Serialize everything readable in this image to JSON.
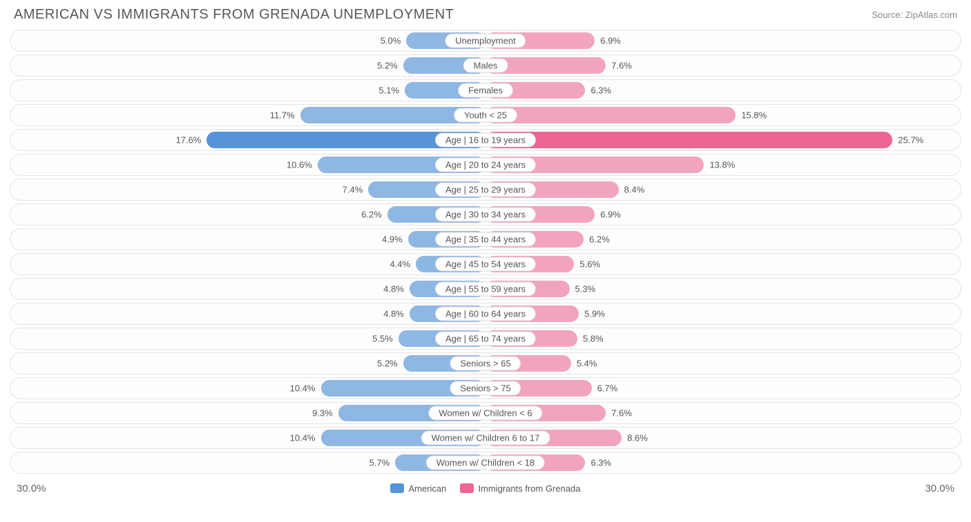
{
  "title": "AMERICAN VS IMMIGRANTS FROM GRENADA UNEMPLOYMENT",
  "source": "Source: ZipAtlas.com",
  "chart": {
    "type": "diverging-bar",
    "axis_max": 30.0,
    "axis_label_left": "30.0%",
    "axis_label_right": "30.0%",
    "background_color": "#ffffff",
    "track_border_color": "#e4e4e4",
    "label_pill_border": "#d9d9d9",
    "left_series": {
      "name": "American",
      "color_base": "#8fb7e3",
      "color_highlight": "#5694d9"
    },
    "right_series": {
      "name": "Immigrants from Grenada",
      "color_base": "#f3a4bd",
      "color_highlight": "#ec6594"
    },
    "highlight_index": 4,
    "rows": [
      {
        "category": "Unemployment",
        "left_val": 5.0,
        "left_label": "5.0%",
        "right_val": 6.9,
        "right_label": "6.9%"
      },
      {
        "category": "Males",
        "left_val": 5.2,
        "left_label": "5.2%",
        "right_val": 7.6,
        "right_label": "7.6%"
      },
      {
        "category": "Females",
        "left_val": 5.1,
        "left_label": "5.1%",
        "right_val": 6.3,
        "right_label": "6.3%"
      },
      {
        "category": "Youth < 25",
        "left_val": 11.7,
        "left_label": "11.7%",
        "right_val": 15.8,
        "right_label": "15.8%"
      },
      {
        "category": "Age | 16 to 19 years",
        "left_val": 17.6,
        "left_label": "17.6%",
        "right_val": 25.7,
        "right_label": "25.7%"
      },
      {
        "category": "Age | 20 to 24 years",
        "left_val": 10.6,
        "left_label": "10.6%",
        "right_val": 13.8,
        "right_label": "13.8%"
      },
      {
        "category": "Age | 25 to 29 years",
        "left_val": 7.4,
        "left_label": "7.4%",
        "right_val": 8.4,
        "right_label": "8.4%"
      },
      {
        "category": "Age | 30 to 34 years",
        "left_val": 6.2,
        "left_label": "6.2%",
        "right_val": 6.9,
        "right_label": "6.9%"
      },
      {
        "category": "Age | 35 to 44 years",
        "left_val": 4.9,
        "left_label": "4.9%",
        "right_val": 6.2,
        "right_label": "6.2%"
      },
      {
        "category": "Age | 45 to 54 years",
        "left_val": 4.4,
        "left_label": "4.4%",
        "right_val": 5.6,
        "right_label": "5.6%"
      },
      {
        "category": "Age | 55 to 59 years",
        "left_val": 4.8,
        "left_label": "4.8%",
        "right_val": 5.3,
        "right_label": "5.3%"
      },
      {
        "category": "Age | 60 to 64 years",
        "left_val": 4.8,
        "left_label": "4.8%",
        "right_val": 5.9,
        "right_label": "5.9%"
      },
      {
        "category": "Age | 65 to 74 years",
        "left_val": 5.5,
        "left_label": "5.5%",
        "right_val": 5.8,
        "right_label": "5.8%"
      },
      {
        "category": "Seniors > 65",
        "left_val": 5.2,
        "left_label": "5.2%",
        "right_val": 5.4,
        "right_label": "5.4%"
      },
      {
        "category": "Seniors > 75",
        "left_val": 10.4,
        "left_label": "10.4%",
        "right_val": 6.7,
        "right_label": "6.7%"
      },
      {
        "category": "Women w/ Children < 6",
        "left_val": 9.3,
        "left_label": "9.3%",
        "right_val": 7.6,
        "right_label": "7.6%"
      },
      {
        "category": "Women w/ Children 6 to 17",
        "left_val": 10.4,
        "left_label": "10.4%",
        "right_val": 8.6,
        "right_label": "8.6%"
      },
      {
        "category": "Women w/ Children < 18",
        "left_val": 5.7,
        "left_label": "5.7%",
        "right_val": 6.3,
        "right_label": "6.3%"
      }
    ]
  }
}
